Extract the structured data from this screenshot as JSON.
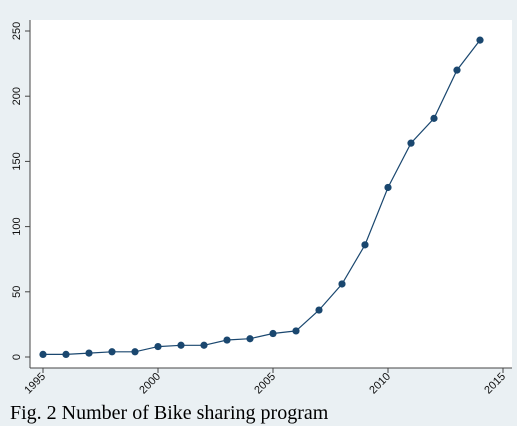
{
  "caption": "Fig. 2 Number of Bike sharing program",
  "colors": {
    "outer_background": "#eaf0f3",
    "plot_background": "#ffffff",
    "series": "#1a476f",
    "axis": "#444444"
  },
  "chart_data": {
    "type": "line",
    "title": "",
    "xlabel": "",
    "ylabel": "",
    "xlim": [
      1995,
      2015
    ],
    "ylim": [
      0,
      250
    ],
    "xticks": [
      1995,
      2000,
      2005,
      2010,
      2015
    ],
    "yticks": [
      0,
      50,
      100,
      150,
      200,
      250
    ],
    "grid": false,
    "legend": "none",
    "markers": true,
    "series": [
      {
        "x": [
          1995,
          1996,
          1997,
          1998,
          1999,
          2000,
          2001,
          2002,
          2003,
          2004,
          2005,
          2006,
          2007,
          2008,
          2009,
          2010,
          2011,
          2012,
          2013,
          2014
        ],
        "values": [
          2,
          2,
          3,
          4,
          4,
          8,
          9,
          9,
          13,
          14,
          18,
          20,
          36,
          56,
          86,
          130,
          164,
          183,
          220,
          243
        ]
      }
    ]
  }
}
